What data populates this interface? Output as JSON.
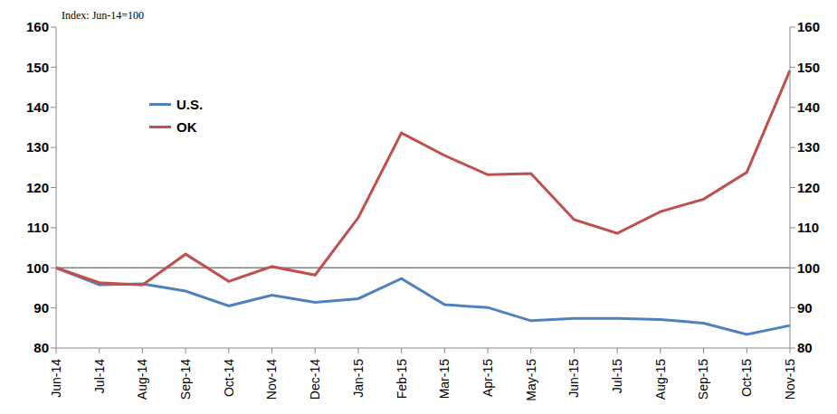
{
  "chart_data": {
    "type": "line",
    "ylabel": "Index: Jun-14=100",
    "categories": [
      "Jun-14",
      "Jul-14",
      "Aug-14",
      "Sep-14",
      "Oct-14",
      "Nov-14",
      "Dec-14",
      "Jan-15",
      "Feb-15",
      "Mar-15",
      "Apr-15",
      "May-15",
      "Jun-15",
      "Jul-15",
      "Aug-15",
      "Sep-15",
      "Oct-15",
      "Nov-15"
    ],
    "series": [
      {
        "name": "U.S.",
        "color": "#4f81bd",
        "marker": "none",
        "line_style": "solid",
        "values": [
          100,
          95.8,
          96,
          94.2,
          90.5,
          93.2,
          91.4,
          92.3,
          97.3,
          90.8,
          90.1,
          86.8,
          87.4,
          87.4,
          87.1,
          86.2,
          83.4,
          85.6
        ]
      },
      {
        "name": "OK",
        "color": "#c0504d",
        "marker": "none",
        "line_style": "solid",
        "values": [
          100,
          96.3,
          95.7,
          103.4,
          96.6,
          100.3,
          98.2,
          112.5,
          133.6,
          128,
          123.2,
          123.5,
          112,
          108.6,
          114,
          117.1,
          123.8,
          149.2
        ]
      }
    ],
    "ylim": [
      80,
      160
    ],
    "yticks": [
      80,
      90,
      100,
      110,
      120,
      130,
      140,
      150,
      160
    ],
    "y2lim": [
      80,
      160
    ],
    "y2ticks": [
      80,
      90,
      100,
      110,
      120,
      130,
      140,
      150,
      160
    ],
    "baseline": 100,
    "grid": false,
    "legend": "upper left"
  }
}
